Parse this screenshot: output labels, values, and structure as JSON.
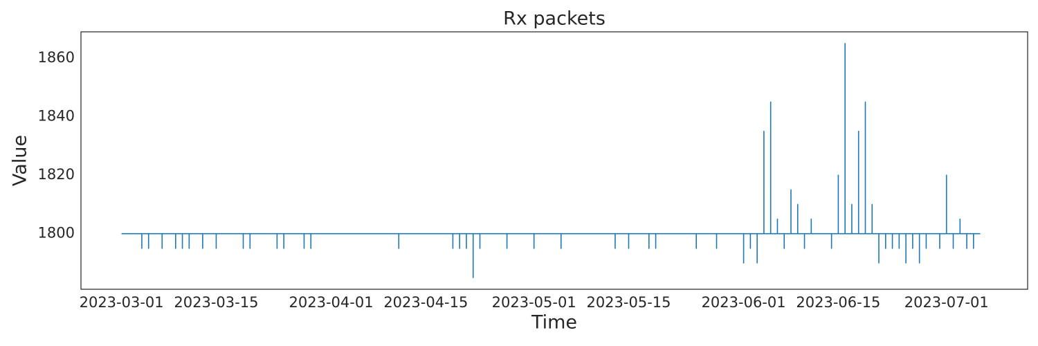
{
  "chart_data": {
    "type": "line",
    "title": "Rx packets",
    "x_label": "Time",
    "y_label": "Value",
    "series": [
      {
        "color": "#1f77b4",
        "x": [
          "2023-03-01",
          "2023-03-04",
          "2023-03-04",
          "2023-03-04",
          "2023-03-05",
          "2023-03-05",
          "2023-03-05",
          "2023-03-07",
          "2023-03-07",
          "2023-03-07",
          "2023-03-09",
          "2023-03-09",
          "2023-03-09",
          "2023-03-10",
          "2023-03-10",
          "2023-03-10",
          "2023-03-11",
          "2023-03-11",
          "2023-03-11",
          "2023-03-13",
          "2023-03-13",
          "2023-03-13",
          "2023-03-15",
          "2023-03-15",
          "2023-03-15",
          "2023-03-19",
          "2023-03-19",
          "2023-03-19",
          "2023-03-20",
          "2023-03-20",
          "2023-03-20",
          "2023-03-24",
          "2023-03-24",
          "2023-03-24",
          "2023-03-25",
          "2023-03-25",
          "2023-03-25",
          "2023-03-28",
          "2023-03-28",
          "2023-03-28",
          "2023-03-29",
          "2023-03-29",
          "2023-03-29",
          "2023-04-11",
          "2023-04-11",
          "2023-04-11",
          "2023-04-19",
          "2023-04-19",
          "2023-04-19",
          "2023-04-20",
          "2023-04-20",
          "2023-04-20",
          "2023-04-21",
          "2023-04-21",
          "2023-04-21",
          "2023-04-22",
          "2023-04-22",
          "2023-04-22",
          "2023-04-23",
          "2023-04-23",
          "2023-04-23",
          "2023-04-27",
          "2023-04-27",
          "2023-04-27",
          "2023-05-01",
          "2023-05-01",
          "2023-05-01",
          "2023-05-05",
          "2023-05-05",
          "2023-05-05",
          "2023-05-13",
          "2023-05-13",
          "2023-05-13",
          "2023-05-15",
          "2023-05-15",
          "2023-05-15",
          "2023-05-18",
          "2023-05-18",
          "2023-05-18",
          "2023-05-19",
          "2023-05-19",
          "2023-05-19",
          "2023-05-25",
          "2023-05-25",
          "2023-05-25",
          "2023-05-28",
          "2023-05-28",
          "2023-05-28",
          "2023-06-01",
          "2023-06-01",
          "2023-06-01",
          "2023-06-02",
          "2023-06-02",
          "2023-06-02",
          "2023-06-03",
          "2023-06-03",
          "2023-06-03",
          "2023-06-04",
          "2023-06-04",
          "2023-06-04",
          "2023-06-05",
          "2023-06-05",
          "2023-06-05",
          "2023-06-06",
          "2023-06-06",
          "2023-06-06",
          "2023-06-07",
          "2023-06-07",
          "2023-06-07",
          "2023-06-08",
          "2023-06-08",
          "2023-06-08",
          "2023-06-09",
          "2023-06-09",
          "2023-06-09",
          "2023-06-10",
          "2023-06-10",
          "2023-06-10",
          "2023-06-11",
          "2023-06-11",
          "2023-06-11",
          "2023-06-14",
          "2023-06-14",
          "2023-06-14",
          "2023-06-15",
          "2023-06-15",
          "2023-06-15",
          "2023-06-16",
          "2023-06-16",
          "2023-06-16",
          "2023-06-17",
          "2023-06-17",
          "2023-06-17",
          "2023-06-18",
          "2023-06-18",
          "2023-06-18",
          "2023-06-19",
          "2023-06-19",
          "2023-06-19",
          "2023-06-20",
          "2023-06-20",
          "2023-06-20",
          "2023-06-21",
          "2023-06-21",
          "2023-06-21",
          "2023-06-22",
          "2023-06-22",
          "2023-06-22",
          "2023-06-23",
          "2023-06-23",
          "2023-06-23",
          "2023-06-24",
          "2023-06-24",
          "2023-06-24",
          "2023-06-25",
          "2023-06-25",
          "2023-06-25",
          "2023-06-26",
          "2023-06-26",
          "2023-06-26",
          "2023-06-27",
          "2023-06-27",
          "2023-06-27",
          "2023-06-28",
          "2023-06-28",
          "2023-06-28",
          "2023-06-30",
          "2023-06-30",
          "2023-06-30",
          "2023-07-01",
          "2023-07-01",
          "2023-07-01",
          "2023-07-02",
          "2023-07-02",
          "2023-07-02",
          "2023-07-03",
          "2023-07-03",
          "2023-07-03",
          "2023-07-04",
          "2023-07-04",
          "2023-07-04",
          "2023-07-05",
          "2023-07-05",
          "2023-07-05",
          "2023-07-06"
        ],
        "values": [
          1800,
          1800,
          1795,
          1800,
          1800,
          1795,
          1800,
          1800,
          1795,
          1800,
          1800,
          1795,
          1800,
          1800,
          1795,
          1800,
          1800,
          1795,
          1800,
          1800,
          1795,
          1800,
          1800,
          1795,
          1800,
          1800,
          1795,
          1800,
          1800,
          1795,
          1800,
          1800,
          1795,
          1800,
          1800,
          1795,
          1800,
          1800,
          1795,
          1800,
          1800,
          1795,
          1800,
          1800,
          1795,
          1800,
          1800,
          1795,
          1800,
          1800,
          1795,
          1800,
          1800,
          1795,
          1800,
          1800,
          1785,
          1800,
          1800,
          1795,
          1800,
          1800,
          1795,
          1800,
          1800,
          1795,
          1800,
          1800,
          1795,
          1800,
          1800,
          1795,
          1800,
          1800,
          1795,
          1800,
          1800,
          1795,
          1800,
          1800,
          1795,
          1800,
          1800,
          1795,
          1800,
          1800,
          1795,
          1800,
          1800,
          1790,
          1800,
          1800,
          1795,
          1800,
          1800,
          1790,
          1800,
          1800,
          1835,
          1800,
          1800,
          1845,
          1800,
          1800,
          1805,
          1800,
          1800,
          1795,
          1800,
          1800,
          1815,
          1800,
          1800,
          1810,
          1800,
          1800,
          1795,
          1800,
          1800,
          1805,
          1800,
          1800,
          1795,
          1800,
          1800,
          1820,
          1800,
          1800,
          1865,
          1800,
          1800,
          1810,
          1800,
          1800,
          1835,
          1800,
          1800,
          1845,
          1800,
          1800,
          1810,
          1800,
          1800,
          1790,
          1800,
          1800,
          1795,
          1800,
          1800,
          1795,
          1800,
          1800,
          1795,
          1800,
          1800,
          1790,
          1800,
          1800,
          1795,
          1800,
          1800,
          1790,
          1800,
          1800,
          1795,
          1800,
          1800,
          1795,
          1800,
          1800,
          1820,
          1800,
          1800,
          1795,
          1800,
          1800,
          1805,
          1800,
          1800,
          1795,
          1800,
          1800,
          1795,
          1800,
          1800
        ]
      }
    ],
    "xlim": [
      "2023-02-23",
      "2023-07-13"
    ],
    "xticks": [
      "2023-03-01",
      "2023-03-15",
      "2023-04-01",
      "2023-04-15",
      "2023-05-01",
      "2023-05-15",
      "2023-06-01",
      "2023-06-15",
      "2023-07-01"
    ],
    "ylim": [
      1781,
      1869
    ],
    "yticks": [
      1800,
      1820,
      1840,
      1860
    ],
    "grid": false
  }
}
